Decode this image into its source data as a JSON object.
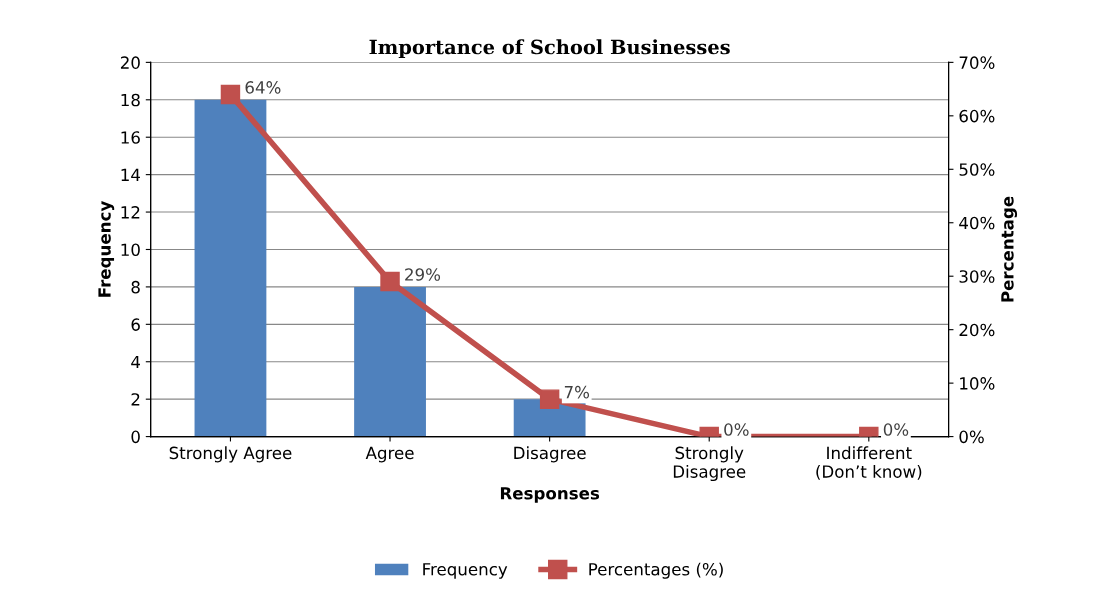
{
  "chart_data": {
    "type": "bar",
    "title": "Importance of School Businesses",
    "xlabel": "Responses",
    "ylabel": "Frequency",
    "y2label": "Percentage",
    "categories": [
      "Strongly Agree",
      "Agree",
      "Disagree",
      "Strongly\nDisagree",
      "Indifferent\n(Don’t know)"
    ],
    "series": [
      {
        "name": "Frequency",
        "color": "#4f81bd",
        "values": [
          18,
          8,
          2,
          0,
          0
        ]
      },
      {
        "name": "Percentages (%)",
        "type": "line",
        "axis": "y2",
        "color": "#c0504d",
        "marker": "square",
        "values": [
          64,
          29,
          7,
          0,
          0
        ],
        "value_labels": [
          "64%",
          "29%",
          "7%",
          "0%",
          "0%"
        ]
      }
    ],
    "ylim": [
      0,
      20
    ],
    "yticks": [
      0,
      2,
      4,
      6,
      8,
      10,
      12,
      14,
      16,
      18,
      20
    ],
    "y2lim": [
      0,
      70
    ],
    "y2ticks": [
      {
        "value": 0,
        "label": "0%"
      },
      {
        "value": 10,
        "label": "10%"
      },
      {
        "value": 20,
        "label": "20%"
      },
      {
        "value": 30,
        "label": "30%"
      },
      {
        "value": 40,
        "label": "40%"
      },
      {
        "value": 50,
        "label": "50%"
      },
      {
        "value": 60,
        "label": "60%"
      },
      {
        "value": 70,
        "label": "70%"
      }
    ],
    "grid": "y",
    "legend": "bottom"
  }
}
